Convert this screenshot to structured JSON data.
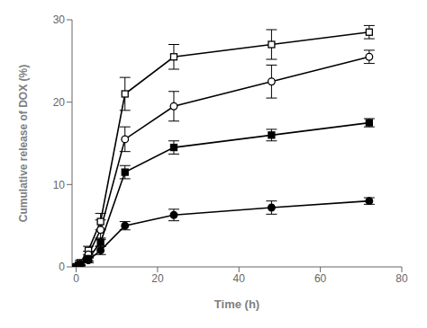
{
  "chart_data": {
    "type": "line",
    "x": [
      0,
      1,
      3,
      6,
      12,
      24,
      48,
      72
    ],
    "series": [
      {
        "color": "black",
        "marker": "square_open",
        "values": [
          0,
          0.5,
          2.0,
          5.5,
          21.0,
          25.5,
          27.0,
          28.5
        ],
        "yerr": [
          0,
          0.3,
          0.5,
          1.0,
          2.0,
          1.5,
          1.8,
          0.8
        ]
      },
      {
        "color": "black",
        "marker": "circle_open",
        "values": [
          0,
          0.4,
          1.5,
          4.5,
          15.5,
          19.5,
          22.5,
          25.5
        ],
        "yerr": [
          0,
          0.2,
          0.4,
          1.2,
          1.5,
          1.8,
          2.0,
          0.8
        ]
      },
      {
        "color": "black",
        "marker": "square",
        "values": [
          0,
          0.3,
          1.0,
          3.0,
          11.5,
          14.5,
          16.0,
          17.5
        ],
        "yerr": [
          0,
          0.2,
          0.3,
          0.5,
          0.8,
          0.8,
          0.7,
          0.5
        ]
      },
      {
        "color": "black",
        "marker": "circle",
        "values": [
          0,
          0.2,
          0.8,
          2.0,
          5.0,
          6.3,
          7.2,
          8.0
        ],
        "yerr": [
          0,
          0.1,
          0.3,
          0.5,
          0.5,
          0.7,
          0.8,
          0.4
        ]
      }
    ],
    "xlabel": "Time (h)",
    "ylabel": "Cumulative release of DOX (%)",
    "xlim": [
      -1,
      80
    ],
    "xticks": [
      0,
      20,
      40,
      60,
      80
    ],
    "ylim": [
      0,
      30
    ],
    "yticks": [
      0,
      10,
      20,
      30
    ],
    "grid": false
  }
}
